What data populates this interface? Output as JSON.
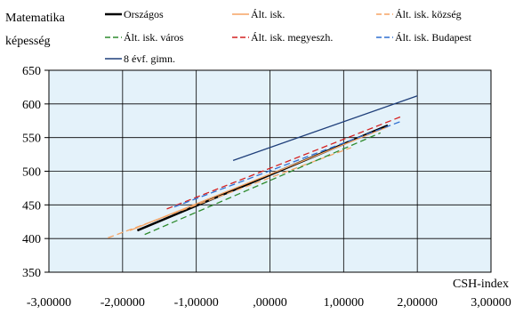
{
  "chart_data": {
    "type": "line",
    "ylabel_lines": [
      "Matematika",
      "képesség"
    ],
    "xlabel": "CSH-index",
    "xlim": [
      -3,
      3
    ],
    "ylim": [
      350,
      650
    ],
    "x_ticks": [
      -3,
      -2,
      -1,
      0,
      1,
      2,
      3
    ],
    "x_tick_labels": [
      "-3,00000",
      "-2,00000",
      "-1,00000",
      ",00000",
      "1,00000",
      "2,00000",
      "3,00000"
    ],
    "y_ticks": [
      350,
      400,
      450,
      500,
      550,
      600,
      650
    ],
    "y_tick_labels": [
      "350",
      "400",
      "450",
      "500",
      "550",
      "600",
      "650"
    ],
    "plot_background": "#e4f2fa",
    "grid": true,
    "legend_position": "top",
    "series": [
      {
        "name": "Országos",
        "color": "#000000",
        "dash": "solid",
        "width": 2.5,
        "x": [
          -1.8,
          1.6
        ],
        "y": [
          412,
          568
        ]
      },
      {
        "name": "Ált. isk.",
        "color": "#f5a464",
        "dash": "solid",
        "width": 1.3,
        "x": [
          -1.9,
          1.6
        ],
        "y": [
          412,
          566
        ]
      },
      {
        "name": "Ált. isk. község",
        "color": "#f5a464",
        "dash": "dash",
        "width": 1.3,
        "x": [
          -2.2,
          1.1
        ],
        "y": [
          401,
          535
        ]
      },
      {
        "name": "Ált. isk. város",
        "color": "#2e8b2e",
        "dash": "dash",
        "width": 1.3,
        "x": [
          -1.7,
          1.5
        ],
        "y": [
          406,
          557
        ]
      },
      {
        "name": "Ált. isk. megyeszh.",
        "color": "#d42020",
        "dash": "dash",
        "width": 1.3,
        "x": [
          -1.4,
          1.8
        ],
        "y": [
          444,
          582
        ]
      },
      {
        "name": "Ált. isk. Budapest",
        "color": "#2f6fd0",
        "dash": "dash",
        "width": 1.3,
        "x": [
          -1.3,
          1.8
        ],
        "y": [
          447,
          575
        ]
      },
      {
        "name": "8 évf. gimn.",
        "color": "#1f3f7a",
        "dash": "solid",
        "width": 1.3,
        "x": [
          -0.5,
          2.0
        ],
        "y": [
          516,
          612
        ]
      }
    ]
  }
}
